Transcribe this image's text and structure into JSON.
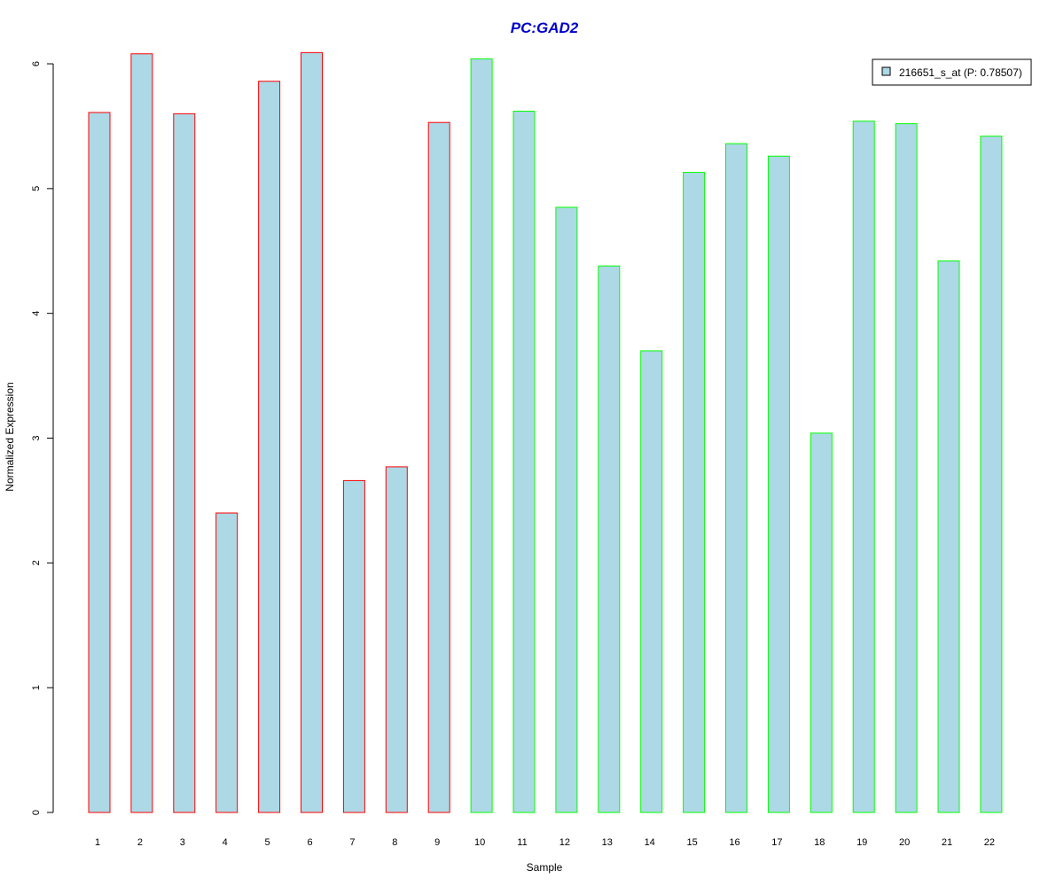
{
  "chart_data": {
    "type": "bar",
    "title": "PC:GAD2",
    "xlabel": "Sample",
    "ylabel": "Normalized Expression",
    "categories": [
      "1",
      "2",
      "3",
      "4",
      "5",
      "6",
      "7",
      "8",
      "9",
      "10",
      "11",
      "12",
      "13",
      "14",
      "15",
      "16",
      "17",
      "18",
      "19",
      "20",
      "21",
      "22"
    ],
    "series": [
      {
        "name": "216651_s_at (P: 0.78507)",
        "values": [
          5.61,
          6.08,
          5.6,
          2.4,
          5.86,
          6.09,
          2.66,
          2.77,
          5.53,
          6.04,
          5.62,
          4.85,
          4.38,
          3.7,
          5.13,
          5.36,
          5.26,
          3.04,
          5.54,
          5.52,
          4.42,
          5.42
        ]
      }
    ],
    "bar_fill": "#add8e6",
    "bar_outline_colors": [
      "#ff0000",
      "#ff0000",
      "#ff0000",
      "#ff0000",
      "#ff0000",
      "#ff0000",
      "#ff0000",
      "#ff0000",
      "#ff0000",
      "#00ff00",
      "#00ff00",
      "#00ff00",
      "#00ff00",
      "#00ff00",
      "#00ff00",
      "#00ff00",
      "#00ff00",
      "#00ff00",
      "#00ff00",
      "#00ff00",
      "#00ff00",
      "#00ff00"
    ],
    "title_color": "#0000cd",
    "yticks": [
      "0",
      "1",
      "2",
      "3",
      "4",
      "5",
      "6"
    ],
    "ylim": [
      0,
      6.3
    ],
    "grid": false,
    "legend_position": "top-right"
  }
}
